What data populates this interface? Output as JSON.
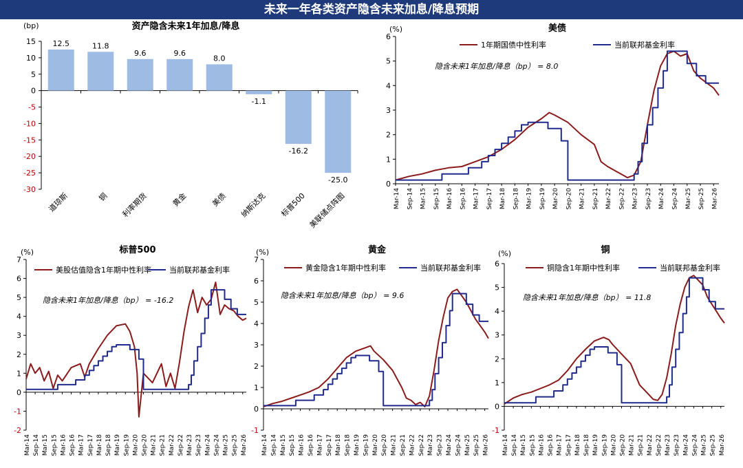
{
  "page_title": "未来一年各类资产隐含未来加息/降息预期",
  "colors": {
    "banner": "#1f3a7a",
    "bar": "#9dbbe3",
    "implied": "#8b1a1a",
    "fed": "#1f2a8c",
    "neg_tick": "#c00000"
  },
  "chart_data": [
    {
      "id": "bar",
      "type": "bar",
      "title": "资产隐含未来1年加息/降息",
      "unit": "(bp)",
      "ylim": [
        -30,
        15
      ],
      "yticks": [
        15,
        10,
        5,
        0,
        -5,
        -10,
        -15,
        -20,
        -25,
        -30
      ],
      "categories": [
        "道琼斯",
        "铜",
        "利率期货",
        "黄金",
        "美债",
        "纳斯达克",
        "标普500",
        "美联储点阵图"
      ],
      "values": [
        12.5,
        11.8,
        9.6,
        9.6,
        8.0,
        -1.1,
        -16.2,
        -25.0
      ],
      "value_labels": [
        "12.5",
        "11.8",
        "9.6",
        "9.6",
        "8.0",
        "-1.1",
        "-16.2",
        "-25.0"
      ]
    },
    {
      "id": "treasury",
      "type": "line",
      "title": "美债",
      "unit": "(%)",
      "ylim": [
        0,
        6
      ],
      "yticks": [
        0,
        1,
        2,
        3,
        4,
        5,
        6
      ],
      "legend": [
        "1年期国债中性利率",
        "当前联邦基金利率"
      ],
      "annotation": "隐含未来1年加息/降息（bp） = 8.0",
      "xticks": [
        "Mar-14",
        "Sep-14",
        "Mar-15",
        "Sep-15",
        "Mar-16",
        "Sep-16",
        "Mar-17",
        "Sep-17",
        "Mar-18",
        "Sep-18",
        "Mar-19",
        "Sep-19",
        "Mar-20",
        "Sep-20",
        "Mar-21",
        "Sep-21",
        "Mar-22",
        "Sep-22",
        "Mar-23",
        "Sep-23",
        "Mar-24",
        "Sep-24",
        "Mar-25",
        "Sep-25",
        "Mar-26"
      ],
      "series": [
        {
          "name": "1年期国债中性利率",
          "x": [
            0,
            1,
            2,
            3,
            4,
            5,
            6,
            7,
            8,
            9,
            10,
            11,
            11.6,
            12,
            13,
            14,
            15,
            15.5,
            16,
            16.5,
            17,
            17.5,
            18,
            18.5,
            19,
            19.5,
            20,
            20.5,
            21,
            21.5,
            22,
            22.5,
            23,
            23.5,
            24,
            24.4
          ],
          "y": [
            0.15,
            0.3,
            0.4,
            0.55,
            0.65,
            0.7,
            0.9,
            1.1,
            1.4,
            1.8,
            2.3,
            2.65,
            2.9,
            2.8,
            2.5,
            2.0,
            1.6,
            0.9,
            0.7,
            0.55,
            0.4,
            0.25,
            0.35,
            0.9,
            2.4,
            3.8,
            4.8,
            5.3,
            5.4,
            5.2,
            5.3,
            4.6,
            4.3,
            4.1,
            3.9,
            3.6
          ]
        },
        {
          "name": "当前联邦基金利率",
          "x": [
            0,
            3.5,
            3.5,
            5.5,
            5.5,
            6.5,
            6.5,
            7,
            7,
            7.5,
            7.5,
            8,
            8,
            8.5,
            8.5,
            9,
            9,
            9.5,
            9.5,
            10,
            10,
            11.5,
            11.5,
            12.5,
            12.5,
            13,
            13,
            18,
            18,
            18.3,
            18.3,
            18.6,
            18.6,
            19,
            19,
            19.4,
            19.4,
            19.8,
            19.8,
            20.2,
            20.2,
            20.5,
            20.5,
            22,
            22,
            22.7,
            22.7,
            23.4,
            23.4,
            24.4
          ],
          "y": [
            0.15,
            0.15,
            0.4,
            0.4,
            0.65,
            0.65,
            0.9,
            0.9,
            1.15,
            1.15,
            1.4,
            1.4,
            1.65,
            1.65,
            1.9,
            1.9,
            2.15,
            2.15,
            2.4,
            2.4,
            2.5,
            2.5,
            2.25,
            2.25,
            1.75,
            1.75,
            0.15,
            0.15,
            0.4,
            0.4,
            0.9,
            0.9,
            1.65,
            1.65,
            2.4,
            2.4,
            3.1,
            3.1,
            3.9,
            3.9,
            4.6,
            4.6,
            5.4,
            5.4,
            4.9,
            4.9,
            4.4,
            4.4,
            4.1,
            4.1
          ]
        }
      ]
    },
    {
      "id": "sp500",
      "type": "line",
      "title": "标普500",
      "unit": "(%)",
      "ylim": [
        -2,
        7
      ],
      "yticks": [
        -2,
        -1,
        0,
        1,
        2,
        3,
        4,
        5,
        6,
        7
      ],
      "legend": [
        "美股估值隐含1年期中性利率",
        "当前联邦基金利率"
      ],
      "annotation": "隐含未来1年加息/降息（bp） = -16.2",
      "xticks": [
        "Mar-14",
        "Sep-14",
        "Mar-15",
        "Sep-15",
        "Mar-16",
        "Sep-16",
        "Mar-17",
        "Sep-17",
        "Mar-18",
        "Sep-18",
        "Mar-19",
        "Sep-19",
        "Mar-20",
        "Sep-20",
        "Mar-21",
        "Sep-21",
        "Mar-22",
        "Sep-22",
        "Mar-23",
        "Sep-23",
        "Mar-24",
        "Sep-24",
        "Mar-25",
        "Sep-25",
        "Mar-26"
      ],
      "series": [
        {
          "name": "美股估值隐含1年期中性利率",
          "x": [
            0,
            0.5,
            1,
            1.5,
            2,
            2.5,
            3,
            3.5,
            4,
            5,
            6,
            6.5,
            7,
            8,
            9,
            10,
            11,
            11.5,
            12,
            12.3,
            12.5,
            13,
            14,
            15,
            15.5,
            16,
            16.5,
            17,
            17.5,
            18,
            18.5,
            19,
            19.5,
            20,
            20.5,
            21,
            21.5,
            22,
            22.5,
            23,
            23.5,
            24,
            24.4
          ],
          "y": [
            0.7,
            1.5,
            1.0,
            1.3,
            0.6,
            1.1,
            0.2,
            0.9,
            0.6,
            1.3,
            1.5,
            0.8,
            1.5,
            2.3,
            3.0,
            3.5,
            3.6,
            3.2,
            2.4,
            1.0,
            -1.3,
            1.0,
            0.5,
            1.5,
            0.3,
            1.0,
            0.2,
            1.6,
            3.2,
            4.5,
            5.4,
            4.2,
            5.0,
            4.6,
            4.9,
            5.8,
            4.1,
            4.6,
            4.4,
            4.3,
            4.0,
            3.8,
            3.9
          ]
        },
        {
          "name": "当前联邦基金利率",
          "x": [
            0,
            3.5,
            3.5,
            5.5,
            5.5,
            6.5,
            6.5,
            7,
            7,
            7.5,
            7.5,
            8,
            8,
            8.5,
            8.5,
            9,
            9,
            9.5,
            9.5,
            10,
            10,
            11.5,
            11.5,
            12.5,
            12.5,
            13,
            13,
            18,
            18,
            18.3,
            18.3,
            18.6,
            18.6,
            19,
            19,
            19.4,
            19.4,
            19.8,
            19.8,
            20.2,
            20.2,
            20.5,
            20.5,
            22,
            22,
            22.7,
            22.7,
            23.4,
            23.4,
            24.4
          ],
          "y": [
            0.15,
            0.15,
            0.4,
            0.4,
            0.65,
            0.65,
            0.9,
            0.9,
            1.15,
            1.15,
            1.4,
            1.4,
            1.65,
            1.65,
            1.9,
            1.9,
            2.15,
            2.15,
            2.4,
            2.4,
            2.5,
            2.5,
            2.25,
            2.25,
            1.75,
            1.75,
            0.15,
            0.15,
            0.4,
            0.4,
            0.9,
            0.9,
            1.65,
            1.65,
            2.4,
            2.4,
            3.1,
            3.1,
            3.9,
            3.9,
            4.6,
            4.6,
            5.4,
            5.4,
            4.9,
            4.9,
            4.4,
            4.4,
            4.1,
            4.1
          ]
        }
      ]
    },
    {
      "id": "gold",
      "type": "line",
      "title": "黄金",
      "unit": "(%)",
      "ylim": [
        -1,
        7
      ],
      "yticks": [
        -1,
        0,
        1,
        2,
        3,
        4,
        5,
        6,
        7
      ],
      "legend": [
        "黄金隐含1年期中性利率",
        "当前联邦基金利率"
      ],
      "annotation": "隐含未来1年加息/降息（bp） = 9.6",
      "xticks": [
        "Mar-14",
        "Sep-14",
        "Mar-15",
        "Sep-15",
        "Mar-16",
        "Sep-16",
        "Mar-17",
        "Sep-17",
        "Mar-18",
        "Sep-18",
        "Mar-19",
        "Sep-19",
        "Mar-20",
        "Sep-20",
        "Mar-21",
        "Sep-21",
        "Mar-22",
        "Sep-22",
        "Mar-23",
        "Sep-23",
        "Mar-24",
        "Sep-24",
        "Mar-25",
        "Sep-25",
        "Mar-26"
      ],
      "series": [
        {
          "name": "黄金隐含1年期中性利率",
          "x": [
            0,
            1,
            2,
            3,
            4,
            5,
            6,
            7,
            8,
            9,
            10,
            11,
            11.6,
            12,
            13,
            14,
            15,
            15.5,
            16,
            16.5,
            17,
            17.5,
            18,
            18.5,
            19,
            19.5,
            20,
            20.5,
            21,
            21.5,
            22,
            22.5,
            23,
            23.5,
            24,
            24.4
          ],
          "y": [
            0.1,
            0.25,
            0.35,
            0.5,
            0.65,
            0.8,
            1.0,
            1.4,
            1.9,
            2.4,
            2.7,
            2.85,
            2.95,
            2.7,
            2.3,
            1.8,
            1.0,
            0.5,
            0.4,
            0.2,
            0.3,
            0.1,
            0.6,
            1.8,
            3.2,
            4.3,
            5.2,
            5.5,
            5.6,
            5.3,
            5.0,
            4.6,
            4.2,
            3.9,
            3.6,
            3.3
          ]
        },
        {
          "name": "当前联邦基金利率",
          "x": [
            0,
            3.5,
            3.5,
            5.5,
            5.5,
            6.5,
            6.5,
            7,
            7,
            7.5,
            7.5,
            8,
            8,
            8.5,
            8.5,
            9,
            9,
            9.5,
            9.5,
            10,
            10,
            11.5,
            11.5,
            12.5,
            12.5,
            13,
            13,
            18,
            18,
            18.3,
            18.3,
            18.6,
            18.6,
            19,
            19,
            19.4,
            19.4,
            19.8,
            19.8,
            20.2,
            20.2,
            20.5,
            20.5,
            22,
            22,
            22.7,
            22.7,
            23.4,
            23.4,
            24.4
          ],
          "y": [
            0.15,
            0.15,
            0.4,
            0.4,
            0.65,
            0.65,
            0.9,
            0.9,
            1.15,
            1.15,
            1.4,
            1.4,
            1.65,
            1.65,
            1.9,
            1.9,
            2.15,
            2.15,
            2.4,
            2.4,
            2.5,
            2.5,
            2.25,
            2.25,
            1.75,
            1.75,
            0.15,
            0.15,
            0.4,
            0.4,
            0.9,
            0.9,
            1.65,
            1.65,
            2.4,
            2.4,
            3.1,
            3.1,
            3.9,
            3.9,
            4.6,
            4.6,
            5.4,
            5.4,
            4.9,
            4.9,
            4.4,
            4.4,
            4.1,
            4.1
          ]
        }
      ]
    },
    {
      "id": "copper",
      "type": "line",
      "title": "铜",
      "unit": "(%)",
      "ylim": [
        -1,
        6
      ],
      "yticks": [
        -1,
        0,
        1,
        2,
        3,
        4,
        5,
        6
      ],
      "legend": [
        "铜隐含1年期中性利率",
        "当前联邦基金利率"
      ],
      "annotation": "隐含未来1年加息/降息（bp） = 11.8",
      "xticks": [
        "Mar-14",
        "Sep-14",
        "Mar-15",
        "Sep-15",
        "Mar-16",
        "Sep-16",
        "Mar-17",
        "Sep-17",
        "Mar-18",
        "Sep-18",
        "Mar-19",
        "Sep-19",
        "Mar-20",
        "Sep-20",
        "Mar-21",
        "Sep-21",
        "Mar-22",
        "Sep-22",
        "Mar-23",
        "Sep-23",
        "Mar-24",
        "Sep-24",
        "Mar-25",
        "Sep-25",
        "Mar-26"
      ],
      "series": [
        {
          "name": "铜隐含1年期中性利率",
          "x": [
            0,
            1,
            2,
            3,
            4,
            5,
            6,
            7,
            8,
            9,
            10,
            11,
            11.6,
            12,
            13,
            14,
            15,
            15.5,
            16,
            16.5,
            17,
            17.5,
            18,
            18.5,
            19,
            19.5,
            20,
            20.5,
            21,
            21.5,
            22,
            22.5,
            23,
            23.5,
            24,
            24.4
          ],
          "y": [
            0.1,
            0.35,
            0.5,
            0.6,
            0.75,
            0.9,
            1.1,
            1.5,
            2.0,
            2.4,
            2.75,
            2.9,
            2.8,
            2.6,
            2.2,
            1.8,
            0.9,
            0.7,
            0.5,
            0.3,
            0.25,
            0.5,
            1.2,
            2.2,
            3.4,
            4.3,
            5.0,
            5.4,
            5.5,
            5.3,
            5.1,
            4.6,
            4.3,
            4.0,
            3.7,
            3.5
          ]
        },
        {
          "name": "当前联邦基金利率",
          "x": [
            0,
            3.5,
            3.5,
            5.5,
            5.5,
            6.5,
            6.5,
            7,
            7,
            7.5,
            7.5,
            8,
            8,
            8.5,
            8.5,
            9,
            9,
            9.5,
            9.5,
            10,
            10,
            11.5,
            11.5,
            12.5,
            12.5,
            13,
            13,
            18,
            18,
            18.3,
            18.3,
            18.6,
            18.6,
            19,
            19,
            19.4,
            19.4,
            19.8,
            19.8,
            20.2,
            20.2,
            20.5,
            20.5,
            22,
            22,
            22.7,
            22.7,
            23.4,
            23.4,
            24.4
          ],
          "y": [
            0.15,
            0.15,
            0.4,
            0.4,
            0.65,
            0.65,
            0.9,
            0.9,
            1.15,
            1.15,
            1.4,
            1.4,
            1.65,
            1.65,
            1.9,
            1.9,
            2.15,
            2.15,
            2.4,
            2.4,
            2.5,
            2.5,
            2.25,
            2.25,
            1.75,
            1.75,
            0.15,
            0.15,
            0.4,
            0.4,
            0.9,
            0.9,
            1.65,
            1.65,
            2.4,
            2.4,
            3.1,
            3.1,
            3.9,
            3.9,
            4.6,
            4.6,
            5.4,
            5.4,
            4.9,
            4.9,
            4.4,
            4.4,
            4.1,
            4.1
          ]
        }
      ]
    }
  ]
}
